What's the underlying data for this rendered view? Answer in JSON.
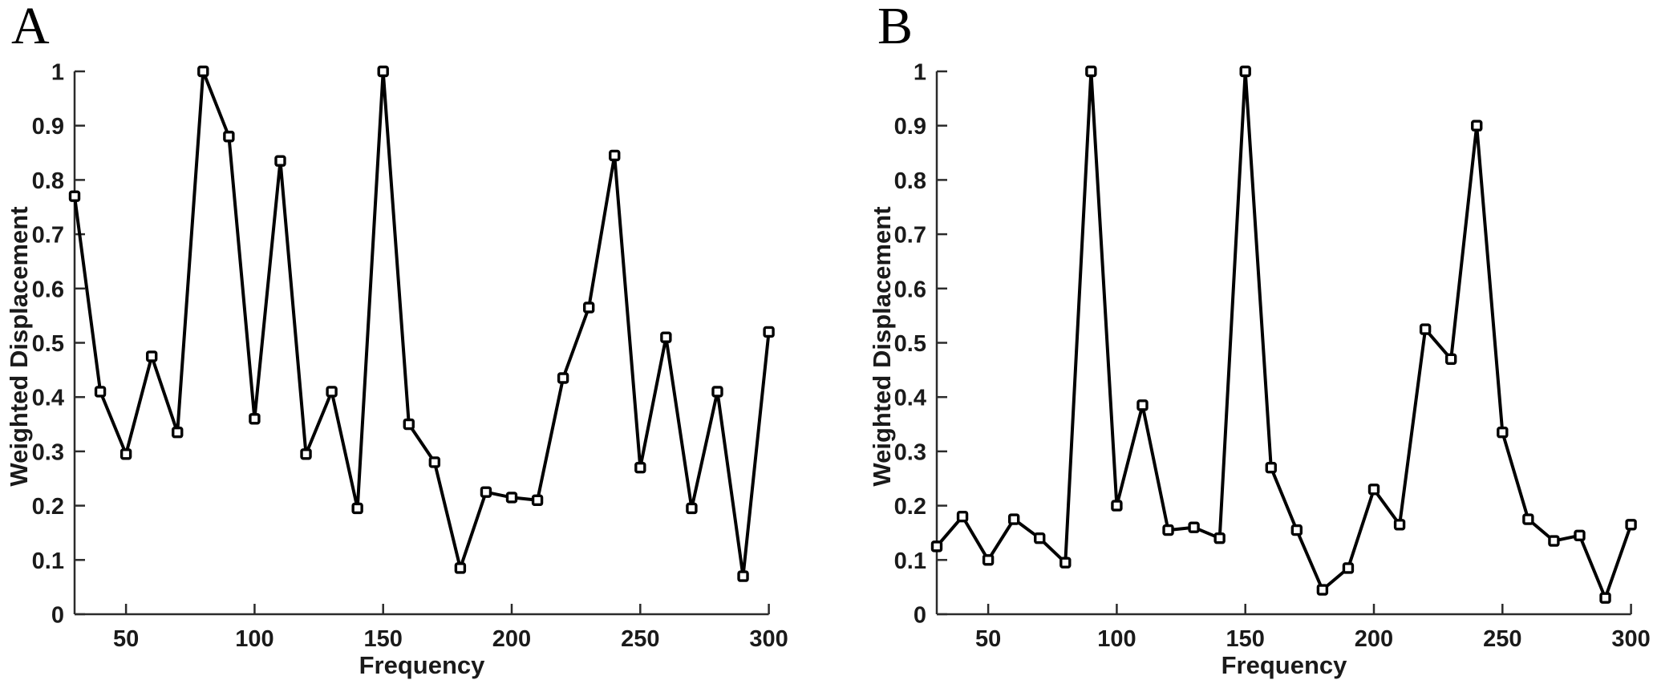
{
  "chart_data": [
    {
      "type": "line",
      "panel_label": "A",
      "title": "",
      "xlabel": "Frequency",
      "ylabel": "Weighted Displacement",
      "xlim": [
        30,
        300
      ],
      "ylim": [
        0,
        1
      ],
      "grid": false,
      "legend": "none",
      "marker": "open-square",
      "line_color": "#000000",
      "marker_fill": "#ffffff",
      "axis_color": "#2b2b2b",
      "x_ticks": [
        50,
        100,
        150,
        200,
        250,
        300
      ],
      "y_tick_labels": [
        "0",
        "0.1",
        "0.2",
        "0.3",
        "0.4",
        "0.5",
        "0.6",
        "0.7",
        "0.8",
        "0.9",
        "1"
      ],
      "x": [
        30,
        40,
        50,
        60,
        70,
        80,
        90,
        100,
        110,
        120,
        130,
        140,
        150,
        160,
        170,
        180,
        190,
        200,
        210,
        220,
        230,
        240,
        250,
        260,
        270,
        280,
        290,
        300
      ],
      "y": [
        0.77,
        0.41,
        0.295,
        0.475,
        0.335,
        1.0,
        0.88,
        0.36,
        0.835,
        0.295,
        0.41,
        0.195,
        1.0,
        0.35,
        0.28,
        0.085,
        0.225,
        0.215,
        0.21,
        0.435,
        0.565,
        0.845,
        0.27,
        0.51,
        0.195,
        0.41,
        0.07,
        0.52
      ]
    },
    {
      "type": "line",
      "panel_label": "B",
      "title": "",
      "xlabel": "Frequency",
      "ylabel": "Weighted Displacement",
      "xlim": [
        30,
        300
      ],
      "ylim": [
        0,
        1
      ],
      "grid": false,
      "legend": "none",
      "marker": "open-square",
      "line_color": "#000000",
      "marker_fill": "#ffffff",
      "axis_color": "#2b2b2b",
      "x_ticks": [
        50,
        100,
        150,
        200,
        250,
        300
      ],
      "y_tick_labels": [
        "0",
        "0.1",
        "0.2",
        "0.3",
        "0.4",
        "0.5",
        "0.6",
        "0.7",
        "0.8",
        "0.9",
        "1"
      ],
      "x": [
        30,
        40,
        50,
        60,
        70,
        80,
        90,
        100,
        110,
        120,
        130,
        140,
        150,
        160,
        170,
        180,
        190,
        200,
        210,
        220,
        230,
        240,
        250,
        260,
        270,
        280,
        290,
        300
      ],
      "y": [
        0.125,
        0.18,
        0.1,
        0.175,
        0.14,
        0.095,
        1.0,
        0.2,
        0.385,
        0.155,
        0.16,
        0.14,
        1.0,
        0.27,
        0.155,
        0.045,
        0.085,
        0.23,
        0.165,
        0.525,
        0.47,
        0.9,
        0.335,
        0.175,
        0.135,
        0.145,
        0.03,
        0.165
      ]
    }
  ]
}
